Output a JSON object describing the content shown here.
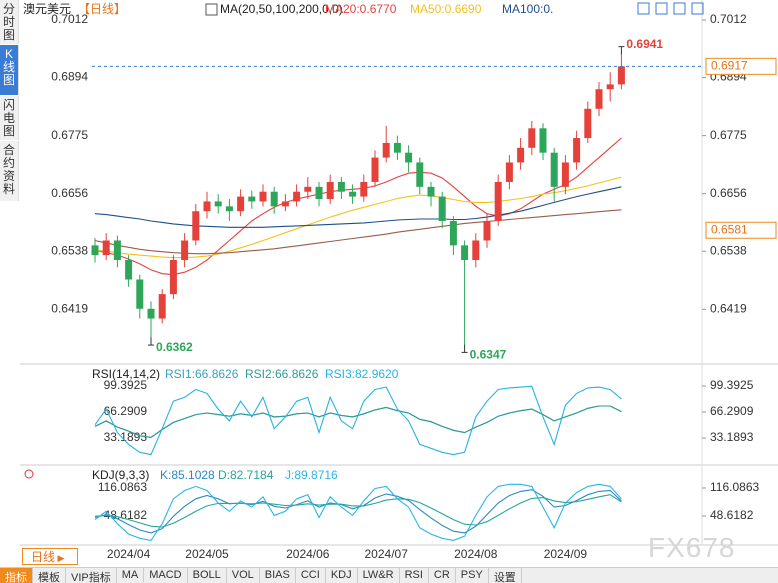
{
  "sidebar": [
    "分时图",
    "K线图",
    "闪电图",
    "合约资料"
  ],
  "toolbar": [
    "指标",
    "模板",
    "VIP指标",
    "MA",
    "MACD",
    "BOLL",
    "VOL",
    "BIAS",
    "CCI",
    "KDJ",
    "LW&R",
    "RSI",
    "CR",
    "PSY",
    "设置"
  ],
  "period_button": "日线",
  "watermark": "FX678",
  "chart_data": [
    {
      "type": "candlestick",
      "title": "澳元美元",
      "subtitle": "【日线】",
      "indicator_label": "MA(20,50,100,200,0,0)",
      "categories": [
        null,
        null,
        null,
        "2024/04",
        null,
        null,
        null,
        null,
        null,
        null,
        "2024/05",
        null,
        null,
        null,
        null,
        null,
        null,
        null,
        null,
        "2024/06",
        null,
        null,
        null,
        null,
        null,
        null,
        "2024/07",
        null,
        null,
        null,
        null,
        null,
        null,
        null,
        "2024/08",
        null,
        null,
        null,
        null,
        null,
        null,
        null,
        "2024/09",
        null,
        null,
        null,
        null,
        null
      ],
      "open": [
        0.655,
        0.653,
        0.656,
        0.652,
        0.648,
        0.642,
        0.64,
        0.645,
        0.652,
        0.656,
        0.662,
        0.664,
        0.663,
        0.662,
        0.665,
        0.664,
        0.666,
        0.663,
        0.664,
        0.666,
        0.667,
        0.6645,
        0.668,
        0.666,
        0.665,
        0.668,
        0.673,
        0.676,
        0.674,
        0.672,
        0.667,
        0.665,
        0.66,
        0.655,
        0.652,
        0.656,
        0.66,
        0.668,
        0.672,
        0.675,
        0.679,
        0.674,
        0.667,
        0.672,
        0.677,
        0.683,
        0.687,
        0.688
      ],
      "high": [
        0.6565,
        0.6575,
        0.657,
        0.653,
        0.649,
        0.6435,
        0.646,
        0.653,
        0.6575,
        0.6635,
        0.666,
        0.6655,
        0.6645,
        0.6665,
        0.6662,
        0.6675,
        0.667,
        0.6655,
        0.6675,
        0.669,
        0.668,
        0.6695,
        0.669,
        0.6675,
        0.6695,
        0.6745,
        0.6795,
        0.6775,
        0.6755,
        0.673,
        0.668,
        0.666,
        0.661,
        0.656,
        0.6575,
        0.6615,
        0.6695,
        0.6735,
        0.677,
        0.6805,
        0.68,
        0.675,
        0.6735,
        0.6785,
        0.6845,
        0.6885,
        0.6905,
        0.6941
      ],
      "low": [
        0.6515,
        0.652,
        0.6505,
        0.6465,
        0.64,
        0.6362,
        0.639,
        0.644,
        0.6505,
        0.655,
        0.6605,
        0.6615,
        0.66,
        0.661,
        0.6625,
        0.663,
        0.6615,
        0.662,
        0.663,
        0.6645,
        0.663,
        0.6635,
        0.6645,
        0.6635,
        0.664,
        0.667,
        0.672,
        0.6725,
        0.67,
        0.6655,
        0.663,
        0.6585,
        0.653,
        0.6347,
        0.6505,
        0.6545,
        0.659,
        0.6665,
        0.6705,
        0.6735,
        0.6725,
        0.664,
        0.6655,
        0.6705,
        0.676,
        0.6815,
        0.6845,
        0.687
      ],
      "close": [
        0.653,
        0.656,
        0.652,
        0.648,
        0.642,
        0.64,
        0.645,
        0.652,
        0.656,
        0.662,
        0.664,
        0.663,
        0.662,
        0.665,
        0.664,
        0.666,
        0.663,
        0.664,
        0.666,
        0.667,
        0.6645,
        0.668,
        0.666,
        0.665,
        0.668,
        0.673,
        0.676,
        0.674,
        0.672,
        0.667,
        0.665,
        0.66,
        0.655,
        0.652,
        0.656,
        0.66,
        0.668,
        0.672,
        0.675,
        0.679,
        0.674,
        0.667,
        0.672,
        0.677,
        0.683,
        0.687,
        0.688,
        0.6917
      ],
      "up_color": "#e5413b",
      "down_color": "#2ea65a",
      "series": [
        {
          "name": "MA20:0.6770",
          "color": "#e5413b",
          "values": [
            0.654,
            0.6535,
            0.653,
            0.6522,
            0.6512,
            0.65,
            0.6492,
            0.649,
            0.6495,
            0.6505,
            0.652,
            0.654,
            0.656,
            0.658,
            0.66,
            0.6615,
            0.6628,
            0.6638,
            0.6645,
            0.665,
            0.6655,
            0.666,
            0.6663,
            0.6665,
            0.6667,
            0.6672,
            0.668,
            0.669,
            0.6698,
            0.67,
            0.6698,
            0.6688,
            0.667,
            0.665,
            0.663,
            0.6615,
            0.661,
            0.6615,
            0.6625,
            0.664,
            0.6655,
            0.6665,
            0.6675,
            0.669,
            0.671,
            0.673,
            0.675,
            0.677
          ]
        },
        {
          "name": "MA50:0.6690",
          "color": "#f2c21b",
          "values": [
            0.654,
            0.6538,
            0.6535,
            0.6532,
            0.653,
            0.6528,
            0.6526,
            0.6525,
            0.6525,
            0.6526,
            0.6528,
            0.6532,
            0.6538,
            0.6545,
            0.6552,
            0.656,
            0.6568,
            0.6576,
            0.6584,
            0.6592,
            0.66,
            0.6608,
            0.6615,
            0.6622,
            0.6628,
            0.6634,
            0.664,
            0.6646,
            0.665,
            0.6653,
            0.6652,
            0.6648,
            0.6644,
            0.664,
            0.6638,
            0.6638,
            0.664,
            0.6643,
            0.6646,
            0.665,
            0.6655,
            0.6658,
            0.6662,
            0.6667,
            0.6672,
            0.6678,
            0.6684,
            0.669
          ]
        },
        {
          "name": "MA100:0.",
          "color": "#1d4f8c",
          "values": [
            0.6615,
            0.6613,
            0.661,
            0.6607,
            0.6604,
            0.66,
            0.6597,
            0.6594,
            0.6592,
            0.659,
            0.6589,
            0.6588,
            0.6587,
            0.6587,
            0.6587,
            0.6587,
            0.6588,
            0.6589,
            0.659,
            0.6591,
            0.6592,
            0.6593,
            0.6594,
            0.6595,
            0.6596,
            0.6598,
            0.66,
            0.6602,
            0.6603,
            0.6604,
            0.6604,
            0.6604,
            0.6603,
            0.6603,
            0.6605,
            0.6608,
            0.6612,
            0.6616,
            0.662,
            0.6626,
            0.6632,
            0.6638,
            0.6644,
            0.665,
            0.6655,
            0.666,
            0.6665,
            0.667
          ]
        },
        {
          "color": "#9b5b4c",
          "values": [
            0.656,
            0.6555,
            0.655,
            0.6546,
            0.6542,
            0.6539,
            0.6537,
            0.6535,
            0.6534,
            0.6533,
            0.6533,
            0.6534,
            0.6535,
            0.6537,
            0.6539,
            0.6541,
            0.6543,
            0.6546,
            0.6549,
            0.6552,
            0.6555,
            0.6558,
            0.6561,
            0.6564,
            0.6567,
            0.657,
            0.6573,
            0.6577,
            0.658,
            0.6583,
            0.6586,
            0.6589,
            0.6592,
            0.6595,
            0.6597,
            0.6599,
            0.6601,
            0.6603,
            0.6605,
            0.6607,
            0.6609,
            0.6611,
            0.6613,
            0.6615,
            0.6617,
            0.6619,
            0.6621,
            0.6623
          ]
        }
      ],
      "annotations": [
        "0.6941",
        "0.6362",
        "0.6347"
      ],
      "last_price": 0.6917,
      "price_tags": [
        0.6917,
        0.6581
      ],
      "ylim": [
        0.6315,
        0.7053
      ],
      "yticks": [
        0.7012,
        0.6894,
        0.6775,
        0.6656,
        0.6538,
        0.6419
      ]
    },
    {
      "type": "line",
      "title": "RSI(14,14,2)",
      "series": [
        {
          "name": "RSI1:66.8626",
          "color": "#3a9fc0",
          "values": [
            48,
            55,
            47,
            42,
            36,
            34,
            44,
            53,
            58,
            63,
            65,
            63,
            61,
            64,
            62,
            65,
            60,
            61,
            64,
            65,
            60,
            65,
            62,
            60,
            64,
            69,
            72,
            68,
            65,
            57,
            54,
            48,
            43,
            40,
            47,
            53,
            61,
            65,
            68,
            70,
            63,
            55,
            60,
            65,
            71,
            74,
            74,
            66.8626
          ]
        },
        {
          "name": "RSI2:66.8626",
          "color": "#2f9a9a",
          "values": [
            48,
            55,
            47,
            42,
            36,
            34,
            44,
            53,
            58,
            63,
            65,
            63,
            61,
            64,
            62,
            65,
            60,
            61,
            64,
            65,
            60,
            65,
            62,
            60,
            64,
            69,
            72,
            68,
            65,
            57,
            54,
            48,
            43,
            40,
            47,
            53,
            61,
            65,
            68,
            70,
            63,
            55,
            60,
            65,
            71,
            74,
            74,
            66.8626
          ]
        },
        {
          "name": "RSI3:82.9620",
          "color": "#27b3e0",
          "values": [
            50,
            70,
            40,
            25,
            15,
            12,
            45,
            80,
            85,
            95,
            90,
            70,
            55,
            80,
            60,
            85,
            45,
            60,
            80,
            85,
            40,
            85,
            55,
            45,
            80,
            95,
            98,
            70,
            55,
            25,
            20,
            15,
            12,
            15,
            60,
            80,
            95,
            97,
            98,
            99,
            60,
            25,
            75,
            90,
            97,
            98,
            95,
            82.962
          ]
        }
      ],
      "ylim": [
        2.6,
        124.9
      ],
      "yticks": [
        99.3925,
        66.2909,
        33.1893
      ]
    },
    {
      "type": "line",
      "title": "KDJ(9,3,3)",
      "series": [
        {
          "name": "K:85.1028",
          "color": "#2e86c1",
          "values": [
            45,
            52,
            42,
            28,
            15,
            8,
            18,
            48,
            72,
            90,
            98,
            90,
            78,
            80,
            76,
            84,
            72,
            68,
            76,
            85,
            70,
            80,
            76,
            66,
            74,
            92,
            102,
            96,
            86,
            64,
            44,
            26,
            12,
            8,
            24,
            52,
            80,
            98,
            108,
            112,
            96,
            70,
            74,
            86,
            100,
            108,
            110,
            85.1028
          ]
        },
        {
          "name": "D:82.7184",
          "color": "#26a69a",
          "values": [
            48,
            50,
            47,
            40,
            32,
            24,
            22,
            31,
            45,
            60,
            73,
            79,
            79,
            79,
            78,
            80,
            77,
            74,
            75,
            78,
            75,
            77,
            77,
            73,
            73,
            79,
            87,
            90,
            89,
            81,
            68,
            54,
            40,
            29,
            27,
            35,
            50,
            66,
            80,
            91,
            93,
            85,
            81,
            83,
            89,
            95,
            100,
            82.7184
          ]
        },
        {
          "name": "J:89.8716",
          "color": "#29b6e8",
          "values": [
            40,
            60,
            30,
            5,
            -5,
            -10,
            30,
            90,
            110,
            120,
            110,
            80,
            60,
            85,
            70,
            95,
            50,
            60,
            90,
            100,
            45,
            95,
            70,
            50,
            85,
            115,
            120,
            90,
            70,
            20,
            5,
            -5,
            -10,
            0,
            50,
            95,
            120,
            125,
            125,
            120,
            70,
            20,
            80,
            105,
            120,
            125,
            120,
            89.8716
          ]
        }
      ],
      "ylim": [
        -21.2,
        169.1
      ],
      "yticks": [
        116.0863,
        48.6182
      ]
    }
  ]
}
